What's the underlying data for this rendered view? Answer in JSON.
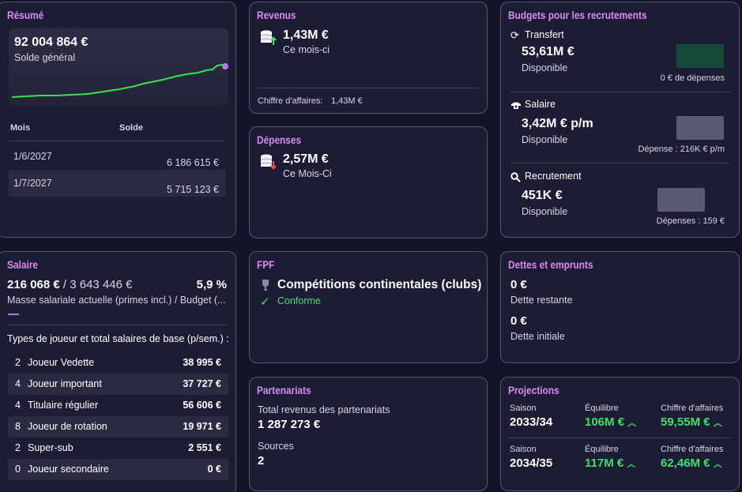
{
  "resume": {
    "title": "Résumé",
    "balance": "92 004 864 €",
    "balance_label": "Solde général",
    "table_header_month": "Mois",
    "table_header_balance": "Solde",
    "rows": [
      {
        "month": "1/6/2027",
        "balance": "6 186 615 €"
      },
      {
        "month": "1/7/2027",
        "balance": "5 715 123 €"
      }
    ],
    "line_color": "#39e24f",
    "dot_color": "#b07cf5"
  },
  "revenus": {
    "title": "Revenus",
    "amount": "1,43M €",
    "period": "Ce mois-ci",
    "ca_label": "Chiffre d'affaires:",
    "ca_value": "1,43M €",
    "icon": "coins-up-icon"
  },
  "depenses": {
    "title": "Dépenses",
    "amount": "2,57M €",
    "period": "Ce Mois-Ci",
    "icon": "coins-down-icon"
  },
  "budgets": {
    "title": "Budgets pour les recrutements",
    "sections": [
      {
        "icon": "refresh-icon",
        "label": "Transfert",
        "amount": "53,61M €",
        "status": "Disponible",
        "note": "0 € de dépenses",
        "swatch": "#15493a"
      },
      {
        "icon": "whistle-icon",
        "label": "Salaire",
        "amount": "3,42M € p/m",
        "status": "Disponible",
        "note": "Dépense : 216K € p/m",
        "swatch": "#5a5a70"
      },
      {
        "icon": "search-icon",
        "label": "Recrutement",
        "amount": "451K €",
        "status": "Disponible",
        "note": "Dépenses : 159 €",
        "swatch": "#5a5a70"
      }
    ]
  },
  "salaire": {
    "title": "Salaire",
    "current": "216 068 €",
    "budget": "/ 3 643 446 €",
    "percent": "5,9 %",
    "caption": "Masse salariale actuelle (primes incl.) / Budget (...",
    "types_heading": "Types de joueur et total salaires de base (p/sem.) :",
    "rows": [
      {
        "count": "2",
        "label": "Joueur Vedette",
        "value": "38 995 €"
      },
      {
        "count": "4",
        "label": "Joueur important",
        "value": "37 727 €"
      },
      {
        "count": "4",
        "label": "Titulaire régulier",
        "value": "56 606 €"
      },
      {
        "count": "8",
        "label": "Joueur de rotation",
        "value": "19 971 €"
      },
      {
        "count": "2",
        "label": "Super-sub",
        "value": "2 551 €"
      },
      {
        "count": "0",
        "label": "Joueur secondaire",
        "value": "0 €"
      }
    ]
  },
  "fpf": {
    "title": "FPF",
    "competition": "Compétitions continentales (clubs)",
    "status": "Conforme"
  },
  "partenariats": {
    "title": "Partenariats",
    "total_label": "Total revenus des partenariats",
    "total_value": "1 287 273 €",
    "sources_label": "Sources",
    "sources_value": "2"
  },
  "dettes": {
    "title": "Dettes et emprunts",
    "remaining_value": "0 €",
    "remaining_label": "Dette restante",
    "initial_value": "0 €",
    "initial_label": "Dette initiale"
  },
  "projections": {
    "title": "Projections",
    "col_season": "Saison",
    "col_balance": "Équilibre",
    "col_revenue": "Chiffre d'affaires",
    "rows": [
      {
        "season": "2033/34",
        "balance": "106M €",
        "revenue": "59,55M €"
      },
      {
        "season": "2034/35",
        "balance": "117M €",
        "revenue": "62,46M €"
      }
    ]
  }
}
